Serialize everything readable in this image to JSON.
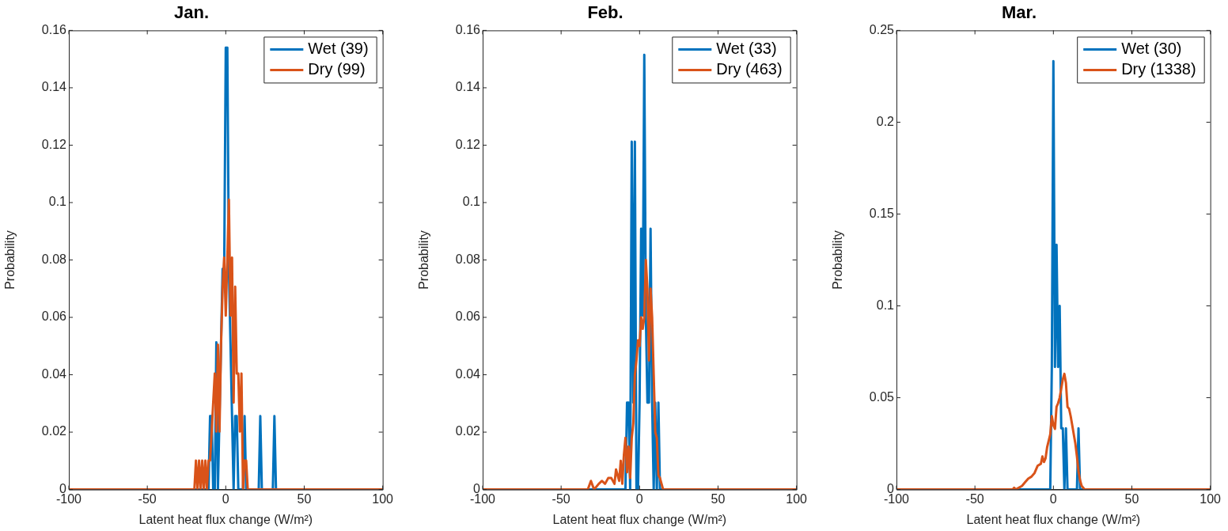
{
  "chart_data": [
    {
      "type": "line",
      "title": "Jan.",
      "xlabel": "Latent heat flux change (W/m²)",
      "ylabel": "Probability",
      "xlim": [
        -100,
        100
      ],
      "xticks": [
        -100,
        -50,
        0,
        50,
        100
      ],
      "ylim": [
        0,
        0.16
      ],
      "yticks": [
        0,
        0.02,
        0.04,
        0.06,
        0.08,
        0.1,
        0.12,
        0.14,
        0.16
      ],
      "legend": "top right",
      "grid": false,
      "marker": "none",
      "line_style": "solid",
      "series": [
        {
          "name": "Wet (39)",
          "color": "#0072bd",
          "x": [
            -100,
            -11,
            -10,
            -9,
            -8,
            -7,
            -6,
            -5,
            -4,
            -3,
            -2,
            -1,
            0,
            1,
            2,
            3,
            4,
            5,
            6,
            7,
            8,
            9,
            11,
            12,
            13,
            21,
            22,
            23,
            30,
            31,
            32,
            100
          ],
          "values": [
            0,
            0,
            0.0256,
            0.0256,
            0,
            0,
            0.0513,
            0,
            0.0256,
            0.0513,
            0.0769,
            0.0769,
            0.154,
            0.154,
            0.0769,
            0.0513,
            0.0256,
            0,
            0.0256,
            0.0256,
            0,
            0,
            0,
            0.0256,
            0,
            0,
            0.0256,
            0,
            0,
            0.0256,
            0,
            0
          ]
        },
        {
          "name": "Dry (99)",
          "color": "#d95319",
          "x": [
            -100,
            -20,
            -19,
            -18,
            -17,
            -16,
            -15,
            -14,
            -13,
            -12,
            -11,
            -10,
            -9,
            -8,
            -7,
            -6,
            -5,
            -4,
            -3,
            -2,
            -1,
            0,
            1,
            2,
            3,
            4,
            5,
            6,
            7,
            8,
            9,
            10,
            11,
            12,
            13,
            14,
            100
          ],
          "values": [
            0,
            0,
            0.0101,
            0,
            0.0101,
            0,
            0.0101,
            0,
            0.0101,
            0,
            0.0101,
            0.0101,
            0.0202,
            0.0303,
            0.0404,
            0.0202,
            0.0505,
            0.0202,
            0.0505,
            0.0707,
            0.0808,
            0.0606,
            0.0808,
            0.101,
            0.0606,
            0.0808,
            0.0303,
            0.0707,
            0.0404,
            0.0404,
            0.0202,
            0.0404,
            0,
            0.0101,
            0.0101,
            0,
            0
          ]
        }
      ]
    },
    {
      "type": "line",
      "title": "Feb.",
      "xlabel": "Latent heat flux change (W/m²)",
      "ylabel": "Probability",
      "xlim": [
        -100,
        100
      ],
      "xticks": [
        -100,
        -50,
        0,
        50,
        100
      ],
      "ylim": [
        0,
        0.16
      ],
      "yticks": [
        0,
        0.02,
        0.04,
        0.06,
        0.08,
        0.1,
        0.12,
        0.14,
        0.16
      ],
      "legend": "top right",
      "grid": false,
      "marker": "none",
      "line_style": "solid",
      "series": [
        {
          "name": "Wet (33)",
          "color": "#0072bd",
          "x": [
            -100,
            -9,
            -8,
            -7,
            -6,
            -5,
            -4,
            -3,
            -2,
            -1,
            0,
            1,
            2,
            3,
            4,
            5,
            6,
            7,
            8,
            9,
            10,
            11,
            12,
            13,
            100
          ],
          "values": [
            0,
            0,
            0.0303,
            0.0303,
            0,
            0.1212,
            0.0303,
            0.1212,
            0,
            0,
            0.0303,
            0.0909,
            0.0606,
            0.1515,
            0.0606,
            0.0303,
            0.0303,
            0.0909,
            0.0303,
            0,
            0.0303,
            0,
            0.0303,
            0,
            0
          ]
        },
        {
          "name": "Dry (463)",
          "color": "#d95319",
          "x": [
            -100,
            -33,
            -31,
            -29,
            -26,
            -24,
            -22,
            -20,
            -18,
            -16,
            -15,
            -13,
            -12,
            -11,
            -10,
            -9,
            -8,
            -7,
            -6,
            -5,
            -4,
            -3,
            -2,
            -1,
            0,
            1,
            2,
            3,
            4,
            5,
            6,
            7,
            8,
            9,
            10,
            11,
            12,
            13,
            14,
            15,
            100
          ],
          "values": [
            0,
            0,
            0.003,
            0,
            0.002,
            0.003,
            0.002,
            0.004,
            0.004,
            0.002,
            0.007,
            0.003,
            0.01,
            0.002,
            0.012,
            0.018,
            0.006,
            0.015,
            0.004,
            0.018,
            0.023,
            0.04,
            0.045,
            0.052,
            0.05,
            0.06,
            0.056,
            0.06,
            0.08,
            0.07,
            0.045,
            0.07,
            0.06,
            0.04,
            0.02,
            0.018,
            0.005,
            0.004,
            0.002,
            0,
            0
          ]
        }
      ]
    },
    {
      "type": "line",
      "title": "Mar.",
      "xlabel": "Latent heat flux change (W/m²)",
      "ylabel": "Probability",
      "xlim": [
        -100,
        100
      ],
      "xticks": [
        -100,
        -50,
        0,
        50,
        100
      ],
      "ylim": [
        0,
        0.25
      ],
      "yticks": [
        0,
        0.05,
        0.1,
        0.15,
        0.2,
        0.25
      ],
      "legend": "top right",
      "grid": false,
      "marker": "none",
      "line_style": "solid",
      "series": [
        {
          "name": "Wet (30)",
          "color": "#0072bd",
          "x": [
            -100,
            -2,
            -1,
            0,
            1,
            2,
            3,
            4,
            5,
            6,
            7,
            8,
            9,
            15,
            16,
            17,
            100
          ],
          "values": [
            0,
            0,
            0.0667,
            0.2333,
            0.0667,
            0.1333,
            0.0667,
            0.1,
            0.0333,
            0.0333,
            0,
            0.0333,
            0,
            0,
            0.0333,
            0,
            0
          ]
        },
        {
          "name": "Dry (1338)",
          "color": "#d95319",
          "x": [
            -100,
            -26,
            -25,
            -24,
            -20,
            -18,
            -16,
            -14,
            -12,
            -10,
            -8,
            -7,
            -6,
            -5,
            -4,
            -2,
            -1,
            0,
            1,
            2,
            3,
            4,
            5,
            6,
            7,
            8,
            9,
            10,
            11,
            12,
            13,
            14,
            15,
            16,
            17,
            18,
            20,
            100
          ],
          "values": [
            0,
            0,
            0.001,
            0,
            0.002,
            0.004,
            0.006,
            0.007,
            0.009,
            0.013,
            0.014,
            0.018,
            0.015,
            0.017,
            0.023,
            0.03,
            0.04,
            0.035,
            0.033,
            0.045,
            0.047,
            0.05,
            0.055,
            0.06,
            0.063,
            0.058,
            0.045,
            0.044,
            0.04,
            0.035,
            0.03,
            0.025,
            0.018,
            0.01,
            0.005,
            0.002,
            0,
            0
          ]
        }
      ]
    }
  ]
}
